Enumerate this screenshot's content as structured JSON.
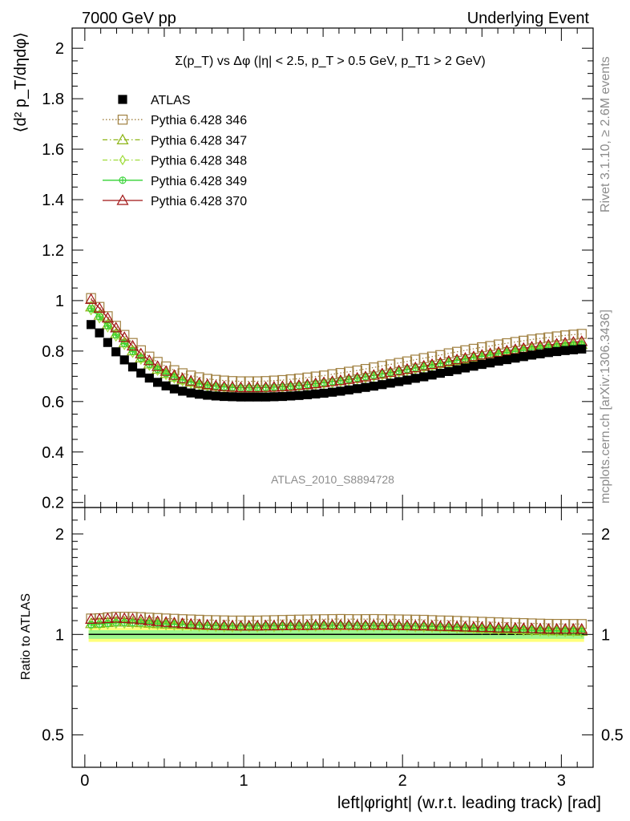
{
  "header": {
    "left": "7000 GeV pp",
    "right": "Underlying Event"
  },
  "side_labels": {
    "rivet": "Rivet 3.1.10, ≥ 2.6M events",
    "mcplots": "mcplots.cern.ch [arXiv:1306.3436]"
  },
  "analysis_id": "ATLAS_2010_S8894728",
  "chart_data": [
    {
      "type": "scatter",
      "title": "Σ(p_T) vs Δφ (|η| < 2.5, p_T > 0.5 GeV, p_T1 > 2 GeV)",
      "ylabel": "⟨d² p_T/dηdφ⟩",
      "xlabel": "left|φright| (w.r.t. leading track) [rad]",
      "xlim": [
        -0.08,
        3.2
      ],
      "ylim": [
        0.18,
        2.08
      ],
      "xticks": [
        0,
        1,
        2,
        3
      ],
      "yticks": [
        0.2,
        0.4,
        0.6,
        0.8,
        1,
        1.2,
        1.4,
        1.6,
        1.8,
        2
      ],
      "legend_position": "top-left",
      "x": [
        0.039,
        0.092,
        0.144,
        0.196,
        0.249,
        0.301,
        0.353,
        0.406,
        0.458,
        0.511,
        0.563,
        0.615,
        0.668,
        0.72,
        0.772,
        0.825,
        0.877,
        0.929,
        0.982,
        1.034,
        1.086,
        1.139,
        1.191,
        1.244,
        1.296,
        1.348,
        1.401,
        1.453,
        1.505,
        1.558,
        1.61,
        1.662,
        1.715,
        1.767,
        1.819,
        1.872,
        1.924,
        1.977,
        2.029,
        2.081,
        2.134,
        2.186,
        2.238,
        2.291,
        2.343,
        2.395,
        2.448,
        2.5,
        2.552,
        2.605,
        2.657,
        2.71,
        2.762,
        2.814,
        2.867,
        2.919,
        2.971,
        3.024,
        3.076,
        3.128
      ],
      "series": [
        {
          "name": "ATLAS",
          "marker": "filled-square",
          "color": "#000000",
          "values": [
            0.905,
            0.872,
            0.834,
            0.797,
            0.765,
            0.737,
            0.713,
            0.693,
            0.676,
            0.662,
            0.65,
            0.641,
            0.634,
            0.629,
            0.625,
            0.622,
            0.62,
            0.619,
            0.618,
            0.618,
            0.618,
            0.618,
            0.619,
            0.62,
            0.622,
            0.624,
            0.627,
            0.63,
            0.633,
            0.637,
            0.641,
            0.646,
            0.651,
            0.656,
            0.661,
            0.667,
            0.673,
            0.679,
            0.685,
            0.692,
            0.698,
            0.705,
            0.712,
            0.719,
            0.726,
            0.733,
            0.74,
            0.747,
            0.753,
            0.76,
            0.766,
            0.772,
            0.778,
            0.784,
            0.789,
            0.794,
            0.798,
            0.802,
            0.805,
            0.808
          ]
        },
        {
          "name": "Pythia 6.428 346",
          "marker": "open-square",
          "line": "dotted",
          "color": "#a08040",
          "values": [
            1.01,
            0.975,
            0.938,
            0.9,
            0.864,
            0.832,
            0.803,
            0.778,
            0.757,
            0.739,
            0.724,
            0.712,
            0.703,
            0.696,
            0.69,
            0.686,
            0.683,
            0.681,
            0.68,
            0.68,
            0.68,
            0.681,
            0.683,
            0.685,
            0.688,
            0.691,
            0.695,
            0.699,
            0.703,
            0.708,
            0.713,
            0.718,
            0.723,
            0.729,
            0.735,
            0.741,
            0.747,
            0.753,
            0.759,
            0.766,
            0.772,
            0.778,
            0.784,
            0.791,
            0.797,
            0.803,
            0.809,
            0.815,
            0.82,
            0.826,
            0.831,
            0.836,
            0.841,
            0.846,
            0.85,
            0.854,
            0.858,
            0.862,
            0.865,
            0.868
          ]
        },
        {
          "name": "Pythia 6.428 347",
          "marker": "open-triangle",
          "line": "dashdot",
          "color": "#8cb414",
          "values": [
            0.975,
            0.942,
            0.905,
            0.868,
            0.833,
            0.801,
            0.773,
            0.749,
            0.728,
            0.711,
            0.697,
            0.686,
            0.677,
            0.67,
            0.665,
            0.661,
            0.658,
            0.656,
            0.655,
            0.655,
            0.655,
            0.656,
            0.657,
            0.659,
            0.661,
            0.664,
            0.667,
            0.671,
            0.675,
            0.679,
            0.683,
            0.688,
            0.693,
            0.698,
            0.704,
            0.709,
            0.715,
            0.721,
            0.727,
            0.733,
            0.739,
            0.745,
            0.751,
            0.757,
            0.763,
            0.768,
            0.774,
            0.779,
            0.784,
            0.789,
            0.794,
            0.799,
            0.803,
            0.807,
            0.811,
            0.815,
            0.818,
            0.821,
            0.824,
            0.826
          ]
        },
        {
          "name": "Pythia 6.428 348",
          "marker": "open-diamond",
          "line": "dashdot",
          "color": "#a0dc3c",
          "values": [
            0.962,
            0.93,
            0.894,
            0.858,
            0.824,
            0.793,
            0.766,
            0.742,
            0.722,
            0.705,
            0.691,
            0.68,
            0.671,
            0.664,
            0.659,
            0.655,
            0.652,
            0.65,
            0.649,
            0.649,
            0.649,
            0.65,
            0.651,
            0.653,
            0.655,
            0.658,
            0.661,
            0.665,
            0.669,
            0.673,
            0.677,
            0.682,
            0.687,
            0.692,
            0.698,
            0.703,
            0.709,
            0.715,
            0.721,
            0.727,
            0.733,
            0.739,
            0.745,
            0.751,
            0.757,
            0.762,
            0.768,
            0.773,
            0.778,
            0.783,
            0.788,
            0.793,
            0.797,
            0.801,
            0.805,
            0.809,
            0.812,
            0.815,
            0.818,
            0.82
          ]
        },
        {
          "name": "Pythia 6.428 349",
          "marker": "open-circle-cross",
          "line": "solid",
          "color": "#32d232",
          "values": [
            0.968,
            0.936,
            0.9,
            0.864,
            0.83,
            0.799,
            0.772,
            0.748,
            0.728,
            0.711,
            0.697,
            0.686,
            0.677,
            0.67,
            0.665,
            0.661,
            0.658,
            0.656,
            0.655,
            0.655,
            0.655,
            0.656,
            0.657,
            0.659,
            0.661,
            0.664,
            0.667,
            0.671,
            0.675,
            0.679,
            0.683,
            0.688,
            0.693,
            0.698,
            0.704,
            0.709,
            0.715,
            0.721,
            0.727,
            0.733,
            0.739,
            0.745,
            0.751,
            0.757,
            0.763,
            0.768,
            0.774,
            0.779,
            0.784,
            0.789,
            0.794,
            0.799,
            0.803,
            0.807,
            0.811,
            0.815,
            0.818,
            0.821,
            0.824,
            0.826
          ]
        },
        {
          "name": "Pythia 6.428 370",
          "marker": "open-triangle",
          "line": "solid",
          "color": "#a01414",
          "values": [
            1.005,
            0.97,
            0.931,
            0.892,
            0.854,
            0.82,
            0.789,
            0.762,
            0.739,
            0.72,
            0.704,
            0.691,
            0.681,
            0.673,
            0.667,
            0.662,
            0.659,
            0.657,
            0.655,
            0.655,
            0.655,
            0.656,
            0.657,
            0.659,
            0.661,
            0.664,
            0.667,
            0.671,
            0.675,
            0.679,
            0.683,
            0.688,
            0.693,
            0.698,
            0.704,
            0.71,
            0.716,
            0.722,
            0.728,
            0.734,
            0.741,
            0.747,
            0.753,
            0.76,
            0.766,
            0.772,
            0.778,
            0.784,
            0.79,
            0.795,
            0.801,
            0.806,
            0.811,
            0.816,
            0.82,
            0.824,
            0.828,
            0.832,
            0.835,
            0.838
          ]
        }
      ]
    },
    {
      "type": "scatter",
      "ylabel": "Ratio to ATLAS",
      "xlabel": "left|φright| (w.r.t. leading track) [rad]",
      "xlim": [
        -0.08,
        3.2
      ],
      "ylim": [
        0.4,
        2.4
      ],
      "ylog": true,
      "xticks": [
        0,
        1,
        2,
        3
      ],
      "yticks": [
        0.5,
        1,
        2
      ],
      "reference_line": 1,
      "uncertainty_bands": [
        {
          "color": "#ffff7a",
          "low": 0.95,
          "high": 1.05
        },
        {
          "color": "#9cf58c",
          "low": 0.97,
          "high": 1.03
        }
      ],
      "derived_from": "ratio of each Pythia series to ATLAS"
    }
  ]
}
